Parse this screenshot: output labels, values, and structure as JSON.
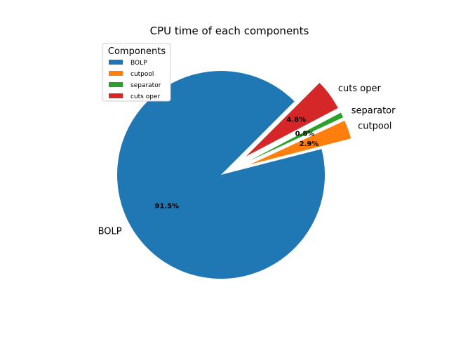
{
  "chart_data": {
    "type": "pie",
    "title": "CPU time of each components",
    "categories": [
      "BOLP",
      "cutpool",
      "separator",
      "cuts oper"
    ],
    "values": [
      91.5,
      2.9,
      0.8,
      4.8
    ],
    "pct_labels": [
      "91.5%",
      "2.9%",
      "0.8%",
      "4.8%"
    ],
    "exploded": [
      false,
      true,
      true,
      true
    ],
    "colors": [
      "#1f77b4",
      "#ff7f0e",
      "#2ca02c",
      "#d62728"
    ],
    "legend": {
      "title": "Components",
      "placement": "upper-left",
      "entries": [
        "BOLP",
        "cutpool",
        "separator",
        "cuts oper"
      ]
    }
  }
}
